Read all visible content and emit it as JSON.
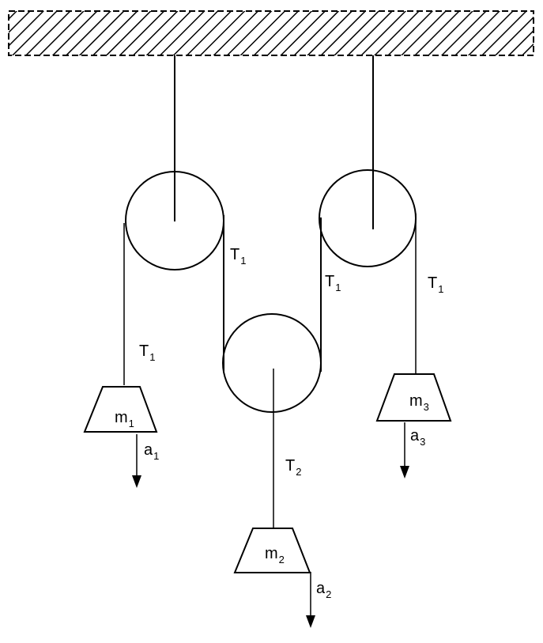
{
  "colors": {
    "line": "#000000",
    "background": "#ffffff"
  },
  "labels": {
    "rope_left_pulley1": {
      "main": "T",
      "sub": "1"
    },
    "rope_right_pulley1": {
      "main": "T",
      "sub": "1"
    },
    "rope_left_pulley3": {
      "main": "T",
      "sub": "1"
    },
    "rope_right_pulley3": {
      "main": "T",
      "sub": "1"
    },
    "rope_pulley2": {
      "main": "T",
      "sub": "2"
    },
    "mass1": {
      "main": "m",
      "sub": "1"
    },
    "mass2": {
      "main": "m",
      "sub": "2"
    },
    "mass3": {
      "main": "m",
      "sub": "3"
    },
    "accel1": {
      "main": "a",
      "sub": "1"
    },
    "accel2": {
      "main": "a",
      "sub": "2"
    },
    "accel3": {
      "main": "a",
      "sub": "3"
    }
  }
}
